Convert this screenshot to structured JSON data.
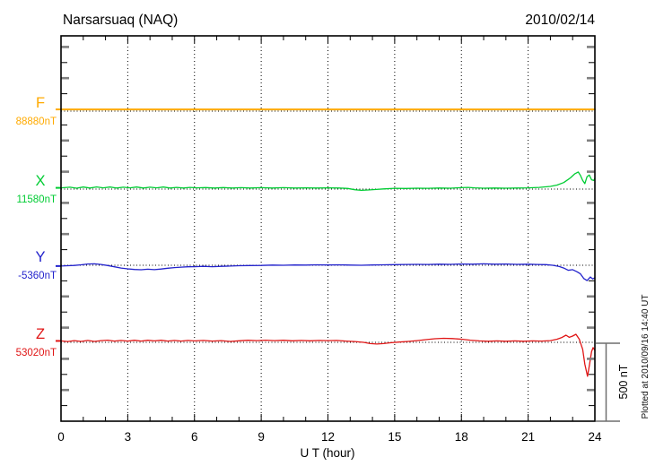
{
  "chart_data": {
    "type": "line",
    "title": "Narsarsuaq (NAQ)",
    "date": "2010/02/14",
    "xlabel": "U T (hour)",
    "x_range": [
      0,
      24
    ],
    "x_major_ticks": [
      0,
      3,
      6,
      9,
      12,
      15,
      18,
      21,
      24
    ],
    "x_minor_step": 1,
    "grid_hours": [
      3,
      6,
      9,
      12,
      15,
      18,
      21
    ],
    "grid_on": true,
    "y_unit": "nT",
    "y_tick_step_nT": 100,
    "scale_bar": {
      "label": "500 nT",
      "nT": 500
    },
    "plotted_at": "Plotted at 2010/09/16 14:40 UT",
    "axis_color": "#000000",
    "tick_alt_color": "#808080",
    "scalebar_color": "#6e6e6e",
    "series": [
      {
        "id": "F",
        "label": "F",
        "value_label": "88880nT",
        "color": "#ffaa00",
        "points": [
          [
            0,
            11
          ],
          [
            3,
            11
          ],
          [
            6,
            11
          ],
          [
            9,
            11
          ],
          [
            12,
            11
          ],
          [
            15,
            11
          ],
          [
            18,
            11
          ],
          [
            21,
            11
          ],
          [
            24,
            11
          ]
        ]
      },
      {
        "id": "X",
        "label": "X",
        "value_label": "11580nT",
        "color": "#00cc33",
        "points": [
          [
            0,
            8
          ],
          [
            0.4,
            12
          ],
          [
            0.7,
            6
          ],
          [
            1,
            13
          ],
          [
            1.3,
            7
          ],
          [
            1.6,
            14
          ],
          [
            1.9,
            8
          ],
          [
            2.2,
            13
          ],
          [
            2.5,
            7
          ],
          [
            2.8,
            12
          ],
          [
            3.1,
            8
          ],
          [
            3.4,
            13
          ],
          [
            3.7,
            7
          ],
          [
            4,
            12
          ],
          [
            4.3,
            8
          ],
          [
            4.6,
            13
          ],
          [
            4.9,
            7
          ],
          [
            5.2,
            11
          ],
          [
            5.5,
            7
          ],
          [
            5.8,
            11
          ],
          [
            6.1,
            8
          ],
          [
            6.5,
            10
          ],
          [
            6.9,
            7
          ],
          [
            7.3,
            10
          ],
          [
            7.7,
            7
          ],
          [
            8.1,
            9
          ],
          [
            8.5,
            7
          ],
          [
            9,
            9
          ],
          [
            9.5,
            7
          ],
          [
            10,
            9
          ],
          [
            10.5,
            7
          ],
          [
            11,
            8
          ],
          [
            11.5,
            7
          ],
          [
            12,
            8
          ],
          [
            12.5,
            7
          ],
          [
            12.9,
            4
          ],
          [
            13.2,
            -4
          ],
          [
            13.5,
            -8
          ],
          [
            13.8,
            -6
          ],
          [
            14.1,
            -3
          ],
          [
            14.5,
            1
          ],
          [
            15,
            5
          ],
          [
            15.5,
            4
          ],
          [
            16,
            6
          ],
          [
            16.5,
            5
          ],
          [
            17,
            7
          ],
          [
            17.5,
            6
          ],
          [
            18,
            9
          ],
          [
            18.3,
            11
          ],
          [
            18.6,
            8
          ],
          [
            19,
            6
          ],
          [
            19.5,
            7
          ],
          [
            20,
            6
          ],
          [
            20.5,
            7
          ],
          [
            21,
            8
          ],
          [
            21.5,
            11
          ],
          [
            22,
            17
          ],
          [
            22.3,
            26
          ],
          [
            22.6,
            42
          ],
          [
            22.9,
            72
          ],
          [
            23.1,
            98
          ],
          [
            23.25,
            110
          ],
          [
            23.35,
            88
          ],
          [
            23.45,
            55
          ],
          [
            23.55,
            35
          ],
          [
            23.65,
            80
          ],
          [
            23.75,
            90
          ],
          [
            23.85,
            60
          ],
          [
            23.95,
            55
          ],
          [
            24,
            70
          ]
        ]
      },
      {
        "id": "Y",
        "label": "Y",
        "value_label": "-5360nT",
        "color": "#2222cc",
        "points": [
          [
            0,
            -5
          ],
          [
            0.3,
            -3
          ],
          [
            0.6,
            -1
          ],
          [
            0.9,
            3
          ],
          [
            1.2,
            8
          ],
          [
            1.5,
            9
          ],
          [
            1.8,
            5
          ],
          [
            2.1,
            -2
          ],
          [
            2.4,
            -10
          ],
          [
            2.7,
            -18
          ],
          [
            3,
            -23
          ],
          [
            3.3,
            -27
          ],
          [
            3.6,
            -29
          ],
          [
            3.9,
            -25
          ],
          [
            4.2,
            -28
          ],
          [
            4.5,
            -24
          ],
          [
            4.8,
            -19
          ],
          [
            5.1,
            -15
          ],
          [
            5.4,
            -12
          ],
          [
            5.7,
            -10
          ],
          [
            6,
            -9
          ],
          [
            6.4,
            -7
          ],
          [
            6.8,
            -9
          ],
          [
            7.2,
            -7
          ],
          [
            7.6,
            -5
          ],
          [
            8,
            -3
          ],
          [
            8.5,
            -2
          ],
          [
            9,
            -1
          ],
          [
            9.5,
            1
          ],
          [
            10,
            0
          ],
          [
            10.5,
            2
          ],
          [
            11,
            1
          ],
          [
            11.5,
            3
          ],
          [
            12,
            2
          ],
          [
            12.5,
            3
          ],
          [
            13,
            1
          ],
          [
            13.5,
            0
          ],
          [
            14,
            2
          ],
          [
            14.5,
            3
          ],
          [
            15,
            4
          ],
          [
            15.5,
            5
          ],
          [
            16,
            6
          ],
          [
            16.5,
            5
          ],
          [
            17,
            7
          ],
          [
            17.5,
            6
          ],
          [
            18,
            8
          ],
          [
            18.5,
            7
          ],
          [
            19,
            9
          ],
          [
            19.5,
            7
          ],
          [
            20,
            8
          ],
          [
            20.5,
            6
          ],
          [
            21,
            7
          ],
          [
            21.4,
            5
          ],
          [
            21.8,
            4
          ],
          [
            22.1,
            0
          ],
          [
            22.4,
            -8
          ],
          [
            22.6,
            -18
          ],
          [
            22.8,
            -32
          ],
          [
            23,
            -28
          ],
          [
            23.2,
            -42
          ],
          [
            23.35,
            -55
          ],
          [
            23.5,
            -85
          ],
          [
            23.65,
            -98
          ],
          [
            23.8,
            -75
          ],
          [
            23.9,
            -88
          ],
          [
            24,
            -80
          ]
        ]
      },
      {
        "id": "Z",
        "label": "Z",
        "value_label": "53020nT",
        "color": "#e01515",
        "points": [
          [
            0,
            9
          ],
          [
            0.3,
            5
          ],
          [
            0.6,
            11
          ],
          [
            0.9,
            6
          ],
          [
            1.2,
            12
          ],
          [
            1.5,
            6
          ],
          [
            1.8,
            11
          ],
          [
            2.1,
            14
          ],
          [
            2.4,
            8
          ],
          [
            2.7,
            12
          ],
          [
            3,
            8
          ],
          [
            3.3,
            13
          ],
          [
            3.6,
            8
          ],
          [
            3.9,
            13
          ],
          [
            4.2,
            9
          ],
          [
            4.5,
            13
          ],
          [
            4.8,
            8
          ],
          [
            5.1,
            12
          ],
          [
            5.4,
            8
          ],
          [
            5.7,
            12
          ],
          [
            6,
            9
          ],
          [
            6.4,
            12
          ],
          [
            6.8,
            8
          ],
          [
            7.2,
            11
          ],
          [
            7.6,
            6
          ],
          [
            8,
            10
          ],
          [
            8.4,
            13
          ],
          [
            8.8,
            11
          ],
          [
            9.2,
            14
          ],
          [
            9.6,
            11
          ],
          [
            10,
            13
          ],
          [
            10.4,
            10
          ],
          [
            10.8,
            12
          ],
          [
            11.2,
            10
          ],
          [
            11.6,
            12
          ],
          [
            12,
            11
          ],
          [
            12.4,
            12
          ],
          [
            12.8,
            8
          ],
          [
            13.2,
            5
          ],
          [
            13.6,
            0
          ],
          [
            13.9,
            -8
          ],
          [
            14.2,
            -11
          ],
          [
            14.5,
            -8
          ],
          [
            14.8,
            -3
          ],
          [
            15.2,
            2
          ],
          [
            15.6,
            6
          ],
          [
            16,
            11
          ],
          [
            16.4,
            17
          ],
          [
            16.8,
            23
          ],
          [
            17.2,
            26
          ],
          [
            17.6,
            24
          ],
          [
            18,
            20
          ],
          [
            18.4,
            14
          ],
          [
            18.8,
            9
          ],
          [
            19.2,
            7
          ],
          [
            19.6,
            9
          ],
          [
            20,
            7
          ],
          [
            20.4,
            9
          ],
          [
            20.8,
            7
          ],
          [
            21.2,
            9
          ],
          [
            21.6,
            8
          ],
          [
            22,
            11
          ],
          [
            22.3,
            20
          ],
          [
            22.5,
            30
          ],
          [
            22.7,
            46
          ],
          [
            22.85,
            32
          ],
          [
            23,
            40
          ],
          [
            23.15,
            52
          ],
          [
            23.3,
            20
          ],
          [
            23.45,
            -45
          ],
          [
            23.55,
            -140
          ],
          [
            23.67,
            -218
          ],
          [
            23.75,
            -150
          ],
          [
            23.85,
            -60
          ],
          [
            23.92,
            -34
          ],
          [
            24,
            -52
          ]
        ]
      }
    ]
  }
}
